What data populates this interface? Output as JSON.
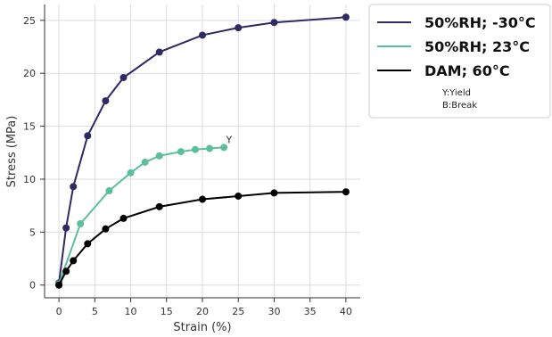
{
  "chart_data": {
    "type": "line",
    "xlabel": "Strain (%)",
    "ylabel": "Stress (MPa)",
    "xlim": [
      -2,
      42
    ],
    "ylim": [
      -1.2,
      26.5
    ],
    "xticks": [
      "0",
      "5",
      "10",
      "15",
      "20",
      "25",
      "30",
      "35",
      "40"
    ],
    "xtick_values": [
      0,
      5,
      10,
      15,
      20,
      25,
      30,
      35,
      40
    ],
    "yticks": [
      "0",
      "5",
      "10",
      "15",
      "20",
      "25"
    ],
    "ytick_values": [
      0,
      5,
      10,
      15,
      20,
      25
    ],
    "grid": true,
    "legend_position": "right, outside plot",
    "series": [
      {
        "name": "50%RH; -30°C",
        "color": "#2e2a63",
        "x": [
          0,
          1,
          2,
          4,
          6.5,
          9,
          14,
          20,
          25,
          30,
          40
        ],
        "y": [
          0.2,
          5.4,
          9.3,
          14.1,
          17.4,
          19.6,
          22.0,
          23.6,
          24.3,
          24.8,
          25.3
        ]
      },
      {
        "name": "50%RH; 23°C",
        "color": "#5cbf9a",
        "x": [
          0,
          3,
          7,
          10,
          12,
          14,
          17,
          19,
          21,
          23
        ],
        "y": [
          0.1,
          5.8,
          8.9,
          10.6,
          11.6,
          12.2,
          12.6,
          12.8,
          12.9,
          13.0
        ]
      },
      {
        "name": "DAM; 60°C",
        "color": "#000000",
        "x": [
          0,
          1,
          2,
          4,
          6.5,
          9,
          14,
          20,
          25,
          30,
          40
        ],
        "y": [
          0.0,
          1.3,
          2.3,
          3.9,
          5.3,
          6.3,
          7.4,
          8.1,
          8.4,
          8.7,
          8.8
        ]
      }
    ],
    "annotations": [
      {
        "text": "Y",
        "x": 23.3,
        "y": 13.4
      }
    ],
    "legend_notes": [
      "Y:Yield",
      "B:Break"
    ]
  }
}
